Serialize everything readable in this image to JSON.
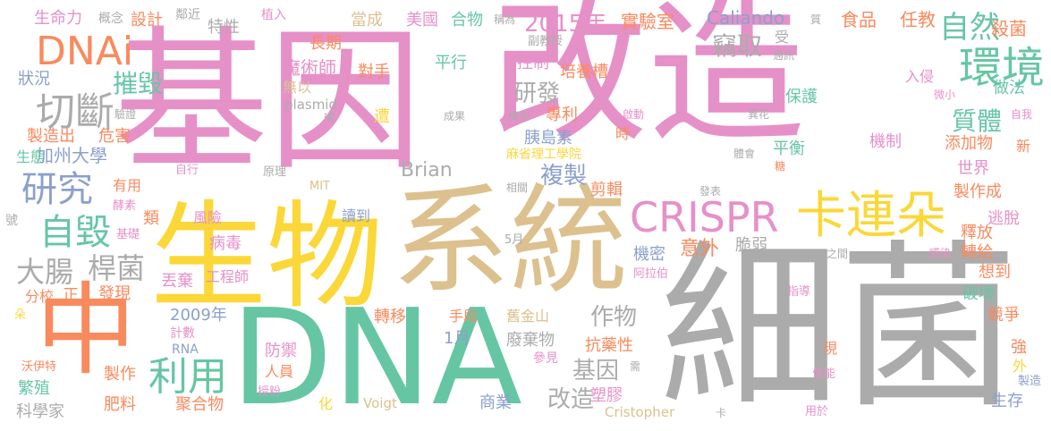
{
  "palette": {
    "pink": "#e690c8",
    "tan": "#dcc18f",
    "gray": "#ababab",
    "green": "#66c6a4",
    "orange": "#f98a5e",
    "yellow": "#fbd738",
    "blue": "#8ca0cb",
    "lime": "#a4d64e"
  },
  "words": [
    {
      "text": "基因",
      "color": "pink"
    },
    {
      "text": "改造",
      "color": "pink"
    },
    {
      "text": "細菌",
      "color": "gray"
    },
    {
      "text": "生物",
      "color": "yellow"
    },
    {
      "text": "系統",
      "color": "tan"
    },
    {
      "text": "DNA",
      "color": "green"
    },
    {
      "text": "中",
      "color": "orange"
    },
    {
      "text": "CRISPR",
      "color": "pink"
    },
    {
      "text": "卡連朵",
      "color": "yellow"
    },
    {
      "text": "DNAi",
      "color": "orange"
    },
    {
      "text": "環境",
      "color": "green"
    },
    {
      "text": "自然",
      "color": "green"
    },
    {
      "text": "切斷",
      "color": "gray"
    },
    {
      "text": "研究",
      "color": "blue"
    },
    {
      "text": "自毀",
      "color": "green"
    },
    {
      "text": "大腸",
      "color": "gray"
    },
    {
      "text": "桿菌",
      "color": "gray"
    },
    {
      "text": "利用",
      "color": "green"
    },
    {
      "text": "2015年",
      "color": "pink"
    },
    {
      "text": "摧毀",
      "color": "green"
    },
    {
      "text": "質體",
      "color": "green"
    },
    {
      "text": "複製",
      "color": "blue"
    },
    {
      "text": "竊取",
      "color": "gray"
    },
    {
      "text": "研發",
      "color": "gray"
    },
    {
      "text": "基因",
      "color": "gray"
    },
    {
      "text": "改造",
      "color": "gray"
    },
    {
      "text": "作物",
      "color": "gray"
    },
    {
      "text": "意外",
      "color": "orange"
    },
    {
      "text": "魔術師",
      "color": "pink"
    },
    {
      "text": "加州大學",
      "color": "blue"
    },
    {
      "text": "麻省理工學院",
      "color": "yellow"
    },
    {
      "text": "Brian",
      "color": "gray"
    },
    {
      "text": "Caliando",
      "color": "blue"
    },
    {
      "text": "Voigt",
      "color": "tan"
    },
    {
      "text": "Cristopher",
      "color": "tan"
    },
    {
      "text": "MIT",
      "color": "tan"
    },
    {
      "text": "plasmid",
      "color": "gray"
    },
    {
      "text": "RNA",
      "color": "blue"
    },
    {
      "text": "5月",
      "color": "gray"
    },
    {
      "text": "1月",
      "color": "blue"
    },
    {
      "text": "2009年",
      "color": "blue"
    },
    {
      "text": "生命力",
      "color": "pink"
    },
    {
      "text": "概念",
      "color": "gray"
    },
    {
      "text": "設計",
      "color": "orange"
    },
    {
      "text": "鄰近",
      "color": "gray"
    },
    {
      "text": "特性",
      "color": "gray"
    },
    {
      "text": "植入",
      "color": "pink"
    },
    {
      "text": "當成",
      "color": "tan"
    },
    {
      "text": "美國",
      "color": "pink"
    },
    {
      "text": "合物",
      "color": "green"
    },
    {
      "text": "稱為",
      "color": "gray"
    },
    {
      "text": "實驗室",
      "color": "orange"
    },
    {
      "text": "食品",
      "color": "orange"
    },
    {
      "text": "任教",
      "color": "orange"
    },
    {
      "text": "殺菌",
      "color": "orange"
    },
    {
      "text": "質",
      "color": "gray"
    },
    {
      "text": "受",
      "color": "gray"
    },
    {
      "text": "副教授",
      "color": "gray"
    },
    {
      "text": "長期",
      "color": "orange"
    },
    {
      "text": "控制",
      "color": "pink"
    },
    {
      "text": "通訊",
      "color": "gray"
    },
    {
      "text": "狀況",
      "color": "blue"
    },
    {
      "text": "對手",
      "color": "orange"
    },
    {
      "text": "平行",
      "color": "green"
    },
    {
      "text": "培養槽",
      "color": "orange"
    },
    {
      "text": "入侵",
      "color": "pink"
    },
    {
      "text": "無以",
      "color": "tan"
    },
    {
      "text": "保護",
      "color": "green"
    },
    {
      "text": "做法",
      "color": "green"
    },
    {
      "text": "微小",
      "color": "pink"
    },
    {
      "text": "驗證",
      "color": "gray"
    },
    {
      "text": "環",
      "color": "gray"
    },
    {
      "text": "遭",
      "color": "yellow"
    },
    {
      "text": "成果",
      "color": "gray"
    },
    {
      "text": "情況",
      "color": "gray"
    },
    {
      "text": "專利",
      "color": "orange"
    },
    {
      "text": "啟動",
      "color": "pink"
    },
    {
      "text": "異花",
      "color": "gray"
    },
    {
      "text": "自我",
      "color": "pink"
    },
    {
      "text": "製造出",
      "color": "orange"
    },
    {
      "text": "危害",
      "color": "orange"
    },
    {
      "text": "胰島素",
      "color": "blue"
    },
    {
      "text": "時",
      "color": "orange"
    },
    {
      "text": "機制",
      "color": "pink"
    },
    {
      "text": "添加物",
      "color": "orange"
    },
    {
      "text": "生態",
      "color": "green"
    },
    {
      "text": "平衡",
      "color": "green"
    },
    {
      "text": "新",
      "color": "orange"
    },
    {
      "text": "體會",
      "color": "gray"
    },
    {
      "text": "糖",
      "color": "orange"
    },
    {
      "text": "自行",
      "color": "pink"
    },
    {
      "text": "原理",
      "color": "gray"
    },
    {
      "text": "相關",
      "color": "gray"
    },
    {
      "text": "剪輯",
      "color": "orange"
    },
    {
      "text": "世界",
      "color": "pink"
    },
    {
      "text": "製作成",
      "color": "orange"
    },
    {
      "text": "有用",
      "color": "orange"
    },
    {
      "text": "發表",
      "color": "gray"
    },
    {
      "text": "號",
      "color": "gray"
    },
    {
      "text": "酵素",
      "color": "pink"
    },
    {
      "text": "類",
      "color": "orange"
    },
    {
      "text": "風險",
      "color": "pink"
    },
    {
      "text": "讀到",
      "color": "blue"
    },
    {
      "text": "逃脫",
      "color": "pink"
    },
    {
      "text": "釋放",
      "color": "orange"
    },
    {
      "text": "基礎",
      "color": "pink"
    },
    {
      "text": "病毒",
      "color": "pink"
    },
    {
      "text": "脆弱",
      "color": "gray"
    },
    {
      "text": "轉給",
      "color": "orange"
    },
    {
      "text": "機密",
      "color": "blue"
    },
    {
      "text": "之間",
      "color": "gray"
    },
    {
      "text": "感染",
      "color": "pink"
    },
    {
      "text": "阿拉伯",
      "color": "pink"
    },
    {
      "text": "想到",
      "color": "orange"
    },
    {
      "text": "丟棄",
      "color": "pink"
    },
    {
      "text": "工程師",
      "color": "pink"
    },
    {
      "text": "分校",
      "color": "orange"
    },
    {
      "text": "正",
      "color": "orange"
    },
    {
      "text": "發現",
      "color": "orange"
    },
    {
      "text": "指導",
      "color": "pink"
    },
    {
      "text": "破壞",
      "color": "green"
    },
    {
      "text": "朵",
      "color": "yellow"
    },
    {
      "text": "轉移",
      "color": "orange"
    },
    {
      "text": "手段",
      "color": "orange"
    },
    {
      "text": "舊金山",
      "color": "tan"
    },
    {
      "text": "競爭",
      "color": "orange"
    },
    {
      "text": "計數",
      "color": "pink"
    },
    {
      "text": "抗藥性",
      "color": "orange"
    },
    {
      "text": "廢棄物",
      "color": "gray"
    },
    {
      "text": "參見",
      "color": "pink"
    },
    {
      "text": "現",
      "color": "orange"
    },
    {
      "text": "強",
      "color": "orange"
    },
    {
      "text": "外",
      "color": "yellow"
    },
    {
      "text": "沃伊特",
      "color": "orange"
    },
    {
      "text": "製作",
      "color": "orange"
    },
    {
      "text": "防禦",
      "color": "pink"
    },
    {
      "text": "人員",
      "color": "orange"
    },
    {
      "text": "需",
      "color": "gray"
    },
    {
      "text": "便能",
      "color": "pink"
    },
    {
      "text": "製造",
      "color": "blue"
    },
    {
      "text": "繁殖",
      "color": "green"
    },
    {
      "text": "授粉",
      "color": "pink"
    },
    {
      "text": "塑膠",
      "color": "pink"
    },
    {
      "text": "生存",
      "color": "blue"
    },
    {
      "text": "肥料",
      "color": "orange"
    },
    {
      "text": "聚合物",
      "color": "orange"
    },
    {
      "text": "化",
      "color": "yellow"
    },
    {
      "text": "商業",
      "color": "blue"
    },
    {
      "text": "卡",
      "color": "gray"
    },
    {
      "text": "用於",
      "color": "pink"
    },
    {
      "text": "科學家",
      "color": "gray"
    }
  ]
}
